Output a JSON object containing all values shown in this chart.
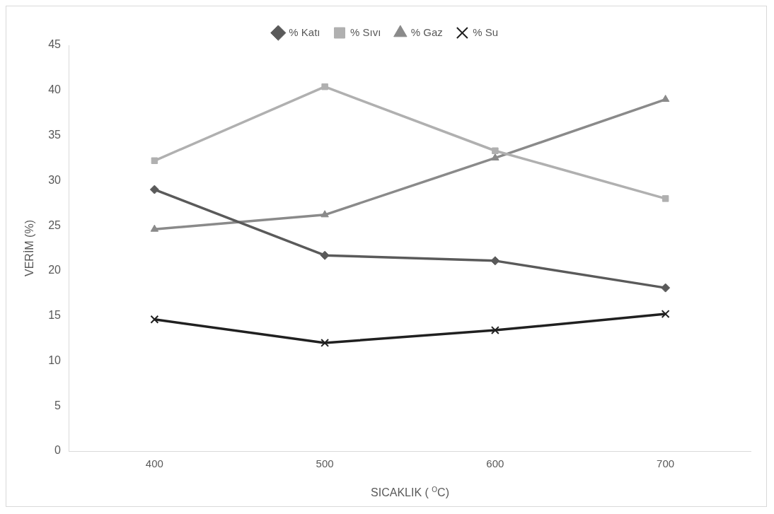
{
  "chart_data": {
    "type": "line",
    "xlabel": "SICAKLIK ( $^{O}$C)",
    "ylabel": "VERİM (%)",
    "categories": [
      "400",
      "500",
      "600",
      "700"
    ],
    "series": [
      {
        "name": "% Katı",
        "color": "#5a5a5a",
        "marker": "diamond",
        "values": [
          29.0,
          21.7,
          21.1,
          18.1
        ]
      },
      {
        "name": "% Sıvı",
        "color": "#b0b0b0",
        "marker": "square",
        "values": [
          32.2,
          40.4,
          33.3,
          28.0
        ]
      },
      {
        "name": "% Gaz",
        "color": "#8a8a8a",
        "marker": "triangle",
        "values": [
          24.6,
          26.2,
          32.5,
          39.0
        ]
      },
      {
        "name": "% Su",
        "color": "#202020",
        "marker": "cross",
        "values": [
          14.6,
          12.0,
          13.4,
          15.2
        ]
      }
    ],
    "ylim": [
      0,
      45
    ],
    "yticks": [
      0,
      5,
      10,
      15,
      20,
      25,
      30,
      35,
      40,
      45
    ],
    "grid": false,
    "legend": "top",
    "line_style": "solid"
  }
}
